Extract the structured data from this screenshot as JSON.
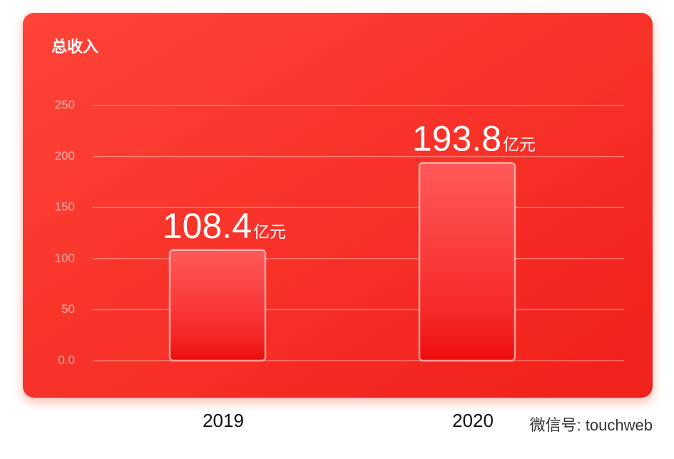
{
  "chart_data": {
    "type": "bar",
    "title": "总收入",
    "categories": [
      "2019",
      "2020"
    ],
    "values": [
      108.4,
      193.8
    ],
    "unit": "亿元",
    "ylim": [
      0,
      250
    ],
    "yticks": [
      {
        "value": 0,
        "label": "0.0"
      },
      50,
      100,
      150,
      200,
      250
    ],
    "grid": true
  },
  "watermark": "微信号: touchweb"
}
